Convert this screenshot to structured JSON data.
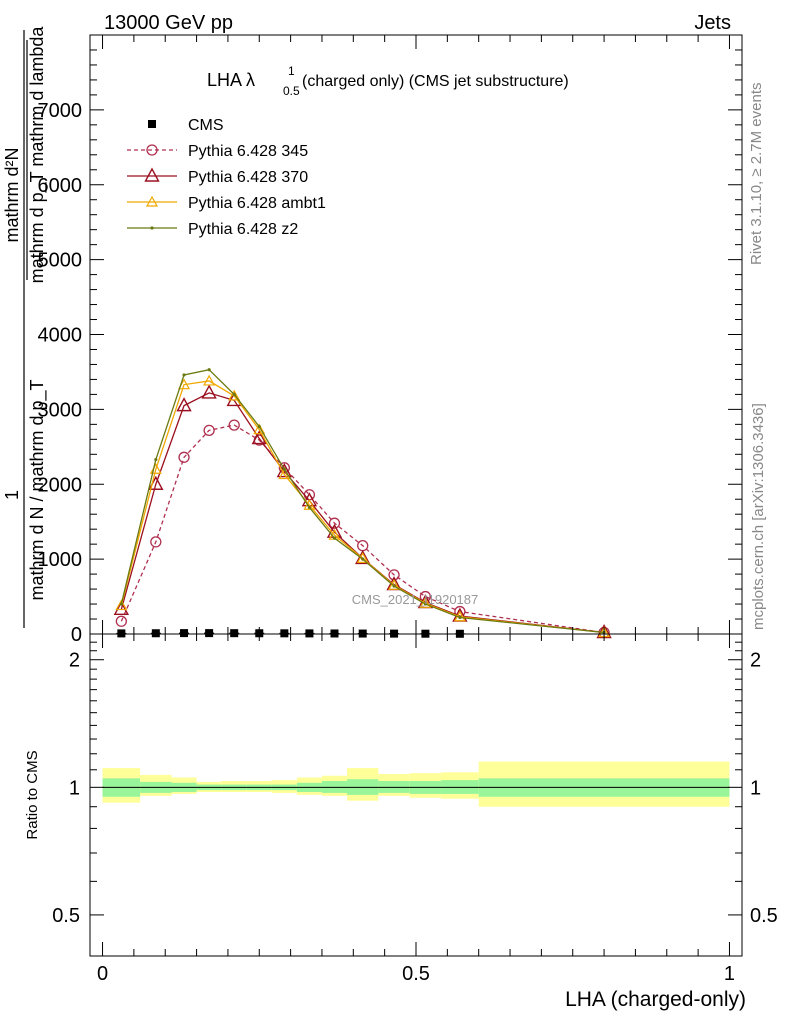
{
  "header": {
    "left": "13000 GeV pp",
    "right": "Jets"
  },
  "side_labels": {
    "rivet": "Rivet 3.1.10, ≥ 2.7M events",
    "mcplots": "mcplots.cern.ch [arXiv:1306.3436]"
  },
  "watermark": "CMS_2021_I1920187",
  "main_plot": {
    "title_main": "LHA λ",
    "title_sup": "1",
    "title_sub": "0.5",
    "title_rest": "(charged only) (CMS jet substructure)",
    "ylabel_num": "mathrm d²N",
    "ylabel_den": "mathrm d p_T mathrm d lambda",
    "ylabel_frac_num": "1",
    "ylabel_frac_den": "mathrm d N / mathrm d p_T"
  },
  "ratio_plot": {
    "ylabel": "Ratio to CMS"
  },
  "colors": {
    "cms": "#000000",
    "p345": "#b03050",
    "p370": "#9b1020",
    "ambt1": "#f0a800",
    "z2": "#6b7a10",
    "band_inner": "#99f599",
    "band_outer": "#ffff99"
  },
  "chart_data": [
    {
      "type": "line",
      "title": "LHA λ^1_0.5 (charged only) (CMS jet substructure)",
      "xlabel": "LHA (charged-only)",
      "xlim": [
        0,
        1
      ],
      "ylim": [
        0,
        8000
      ],
      "x_ticks": [],
      "y_ticks": [
        {
          "value": 0,
          "label": "0"
        },
        {
          "value": 1000,
          "label": "1000"
        },
        {
          "value": 2000,
          "label": "2000"
        },
        {
          "value": 3000,
          "label": "3000"
        },
        {
          "value": 4000,
          "label": "4000"
        },
        {
          "value": 5000,
          "label": "5000"
        },
        {
          "value": 6000,
          "label": "6000"
        },
        {
          "value": 7000,
          "label": "7000"
        }
      ],
      "legend_position": "top-left",
      "series": [
        {
          "name": "CMS",
          "style": "square",
          "x": [
            0.03,
            0.085,
            0.13,
            0.17,
            0.21,
            0.25,
            0.29,
            0.33,
            0.37,
            0.415,
            0.465,
            0.515,
            0.57
          ],
          "y": [
            8,
            10,
            12,
            12,
            11,
            10,
            9,
            8,
            7,
            6,
            5,
            4,
            3
          ]
        },
        {
          "name": "Pythia 6.428 345",
          "style": "dashed-circle",
          "x": [
            0.03,
            0.085,
            0.13,
            0.17,
            0.21,
            0.25,
            0.29,
            0.33,
            0.37,
            0.415,
            0.465,
            0.515,
            0.57,
            0.8
          ],
          "y": [
            170,
            1230,
            2360,
            2720,
            2790,
            2590,
            2220,
            1860,
            1480,
            1180,
            790,
            500,
            300,
            20
          ]
        },
        {
          "name": "Pythia 6.428 370",
          "style": "triangle",
          "x": [
            0.03,
            0.085,
            0.13,
            0.17,
            0.21,
            0.25,
            0.29,
            0.33,
            0.37,
            0.415,
            0.465,
            0.515,
            0.57,
            0.8
          ],
          "y": [
            330,
            2000,
            3050,
            3220,
            3120,
            2610,
            2170,
            1780,
            1360,
            1010,
            660,
            420,
            240,
            20
          ]
        },
        {
          "name": "Pythia 6.428 ambt1",
          "style": "triangle-small",
          "x": [
            0.03,
            0.085,
            0.13,
            0.17,
            0.21,
            0.25,
            0.29,
            0.33,
            0.37,
            0.415,
            0.465,
            0.515,
            0.57,
            0.8
          ],
          "y": [
            380,
            2200,
            3330,
            3380,
            3180,
            2730,
            2130,
            1720,
            1320,
            1010,
            650,
            410,
            230,
            20
          ]
        },
        {
          "name": "Pythia 6.428 z2",
          "style": "dot",
          "x": [
            0.03,
            0.085,
            0.13,
            0.17,
            0.21,
            0.25,
            0.29,
            0.33,
            0.37,
            0.415,
            0.465,
            0.515,
            0.57,
            0.8
          ],
          "y": [
            400,
            2330,
            3460,
            3530,
            3200,
            2770,
            2200,
            1690,
            1280,
            1000,
            640,
            400,
            220,
            20
          ]
        }
      ]
    },
    {
      "type": "area",
      "title": "",
      "xlabel": "LHA (charged-only)",
      "ylabel": "Ratio to CMS",
      "xlim": [
        0,
        1
      ],
      "ylim": [
        0.4,
        2.3
      ],
      "log_y": true,
      "x_ticks": [
        {
          "value": 0,
          "label": "0"
        },
        {
          "value": 0.5,
          "label": "0.5"
        },
        {
          "value": 1,
          "label": "1"
        }
      ],
      "y_ticks": [
        {
          "value": 0.5,
          "label": "0.5"
        },
        {
          "value": 1,
          "label": "1"
        },
        {
          "value": 2,
          "label": "2"
        }
      ],
      "bins": [
        0,
        0.06,
        0.11,
        0.15,
        0.19,
        0.23,
        0.27,
        0.31,
        0.35,
        0.39,
        0.44,
        0.49,
        0.54,
        0.6,
        1
      ],
      "inner_band": [
        [
          0.95,
          1.05
        ],
        [
          0.97,
          1.03
        ],
        [
          0.975,
          1.025
        ],
        [
          0.985,
          1.015
        ],
        [
          0.985,
          1.015
        ],
        [
          0.985,
          1.015
        ],
        [
          0.985,
          1.015
        ],
        [
          0.975,
          1.025
        ],
        [
          0.97,
          1.035
        ],
        [
          0.96,
          1.045
        ],
        [
          0.97,
          1.035
        ],
        [
          0.965,
          1.035
        ],
        [
          0.965,
          1.04
        ],
        [
          0.95,
          1.05
        ]
      ],
      "outer_band": [
        [
          0.92,
          1.11
        ],
        [
          0.955,
          1.07
        ],
        [
          0.965,
          1.055
        ],
        [
          0.975,
          1.03
        ],
        [
          0.975,
          1.035
        ],
        [
          0.975,
          1.035
        ],
        [
          0.97,
          1.04
        ],
        [
          0.96,
          1.055
        ],
        [
          0.955,
          1.065
        ],
        [
          0.93,
          1.11
        ],
        [
          0.955,
          1.075
        ],
        [
          0.945,
          1.08
        ],
        [
          0.94,
          1.085
        ],
        [
          0.9,
          1.15
        ]
      ]
    }
  ]
}
